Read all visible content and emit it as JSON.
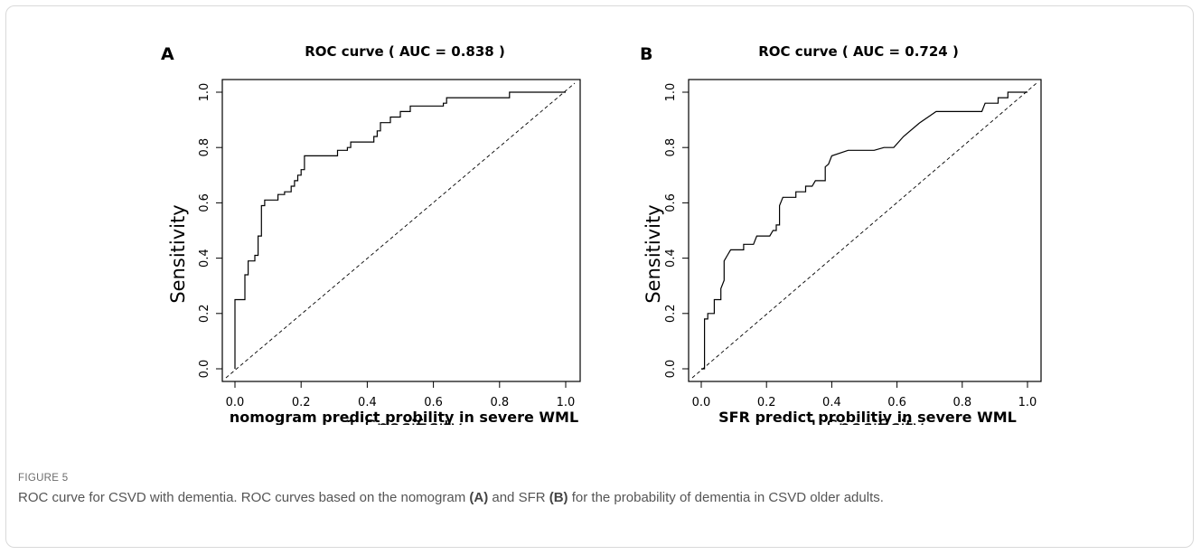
{
  "figure": {
    "label": "FIGURE 5",
    "caption": {
      "p1": "ROC curve for CSVD with dementia. ROC curves based on the nomogram ",
      "p2": "(A)",
      "p3": " and SFR ",
      "p4": "(B)",
      "p5": " for the probability of dementia in CSVD older adults."
    }
  },
  "chart_data": [
    {
      "type": "line",
      "panel_label": "A",
      "title": "ROC curve ( AUC =  0.838 )",
      "xlabel": "1-Specificity",
      "ylabel": "Sensitivity",
      "subtitle": "nomogram predict probility in severe WML",
      "xlim": [
        0,
        1
      ],
      "ylim": [
        0,
        1
      ],
      "xticks": [
        "0.0",
        "0.2",
        "0.4",
        "0.6",
        "0.8",
        "1.0"
      ],
      "yticks": [
        "0.0",
        "0.2",
        "0.4",
        "0.6",
        "0.8",
        "1.0"
      ],
      "grid": false,
      "reference_line": [
        [
          0,
          0
        ],
        [
          1,
          1
        ]
      ],
      "series": [
        {
          "points": [
            [
              0.0,
              0.0
            ],
            [
              0.0,
              0.25
            ],
            [
              0.03,
              0.25
            ],
            [
              0.03,
              0.34
            ],
            [
              0.04,
              0.34
            ],
            [
              0.04,
              0.39
            ],
            [
              0.06,
              0.39
            ],
            [
              0.06,
              0.41
            ],
            [
              0.07,
              0.41
            ],
            [
              0.07,
              0.48
            ],
            [
              0.08,
              0.48
            ],
            [
              0.08,
              0.59
            ],
            [
              0.09,
              0.59
            ],
            [
              0.09,
              0.61
            ],
            [
              0.13,
              0.61
            ],
            [
              0.13,
              0.63
            ],
            [
              0.15,
              0.63
            ],
            [
              0.15,
              0.64
            ],
            [
              0.17,
              0.64
            ],
            [
              0.17,
              0.66
            ],
            [
              0.18,
              0.66
            ],
            [
              0.18,
              0.68
            ],
            [
              0.19,
              0.68
            ],
            [
              0.19,
              0.7
            ],
            [
              0.2,
              0.7
            ],
            [
              0.2,
              0.72
            ],
            [
              0.21,
              0.72
            ],
            [
              0.21,
              0.77
            ],
            [
              0.31,
              0.77
            ],
            [
              0.31,
              0.79
            ],
            [
              0.34,
              0.79
            ],
            [
              0.34,
              0.8
            ],
            [
              0.35,
              0.8
            ],
            [
              0.35,
              0.82
            ],
            [
              0.42,
              0.82
            ],
            [
              0.42,
              0.84
            ],
            [
              0.43,
              0.84
            ],
            [
              0.43,
              0.86
            ],
            [
              0.44,
              0.86
            ],
            [
              0.44,
              0.89
            ],
            [
              0.47,
              0.89
            ],
            [
              0.47,
              0.91
            ],
            [
              0.5,
              0.91
            ],
            [
              0.5,
              0.93
            ],
            [
              0.53,
              0.93
            ],
            [
              0.53,
              0.95
            ],
            [
              0.63,
              0.95
            ],
            [
              0.63,
              0.96
            ],
            [
              0.64,
              0.96
            ],
            [
              0.64,
              0.98
            ],
            [
              0.83,
              0.98
            ],
            [
              0.83,
              1.0
            ],
            [
              1.0,
              1.0
            ]
          ]
        }
      ]
    },
    {
      "type": "line",
      "panel_label": "B",
      "title": "ROC curve ( AUC =  0.724 )",
      "xlabel": "1-Specificity",
      "ylabel": "Sensitivity",
      "subtitle": "SFR predict probilitiy in severe WML",
      "xlim": [
        0,
        1
      ],
      "ylim": [
        0,
        1
      ],
      "xticks": [
        "0.0",
        "0.2",
        "0.4",
        "0.6",
        "0.8",
        "1.0"
      ],
      "yticks": [
        "0.0",
        "0.2",
        "0.4",
        "0.6",
        "0.8",
        "1.0"
      ],
      "grid": false,
      "reference_line": [
        [
          0,
          0
        ],
        [
          1,
          1
        ]
      ],
      "series": [
        {
          "points": [
            [
              0.0,
              0.0
            ],
            [
              0.01,
              0.0
            ],
            [
              0.01,
              0.18
            ],
            [
              0.02,
              0.18
            ],
            [
              0.02,
              0.2
            ],
            [
              0.04,
              0.2
            ],
            [
              0.04,
              0.25
            ],
            [
              0.06,
              0.25
            ],
            [
              0.06,
              0.29
            ],
            [
              0.07,
              0.32
            ],
            [
              0.07,
              0.39
            ],
            [
              0.08,
              0.41
            ],
            [
              0.09,
              0.43
            ],
            [
              0.13,
              0.43
            ],
            [
              0.13,
              0.45
            ],
            [
              0.16,
              0.45
            ],
            [
              0.17,
              0.48
            ],
            [
              0.21,
              0.48
            ],
            [
              0.22,
              0.5
            ],
            [
              0.23,
              0.5
            ],
            [
              0.23,
              0.52
            ],
            [
              0.24,
              0.52
            ],
            [
              0.24,
              0.59
            ],
            [
              0.25,
              0.62
            ],
            [
              0.29,
              0.62
            ],
            [
              0.29,
              0.64
            ],
            [
              0.32,
              0.64
            ],
            [
              0.32,
              0.66
            ],
            [
              0.34,
              0.66
            ],
            [
              0.35,
              0.68
            ],
            [
              0.38,
              0.68
            ],
            [
              0.38,
              0.73
            ],
            [
              0.39,
              0.74
            ],
            [
              0.4,
              0.77
            ],
            [
              0.45,
              0.79
            ],
            [
              0.53,
              0.79
            ],
            [
              0.56,
              0.8
            ],
            [
              0.59,
              0.8
            ],
            [
              0.62,
              0.84
            ],
            [
              0.67,
              0.89
            ],
            [
              0.72,
              0.93
            ],
            [
              0.86,
              0.93
            ],
            [
              0.87,
              0.96
            ],
            [
              0.91,
              0.96
            ],
            [
              0.91,
              0.98
            ],
            [
              0.94,
              0.98
            ],
            [
              0.94,
              1.0
            ],
            [
              1.0,
              1.0
            ]
          ]
        }
      ]
    }
  ]
}
